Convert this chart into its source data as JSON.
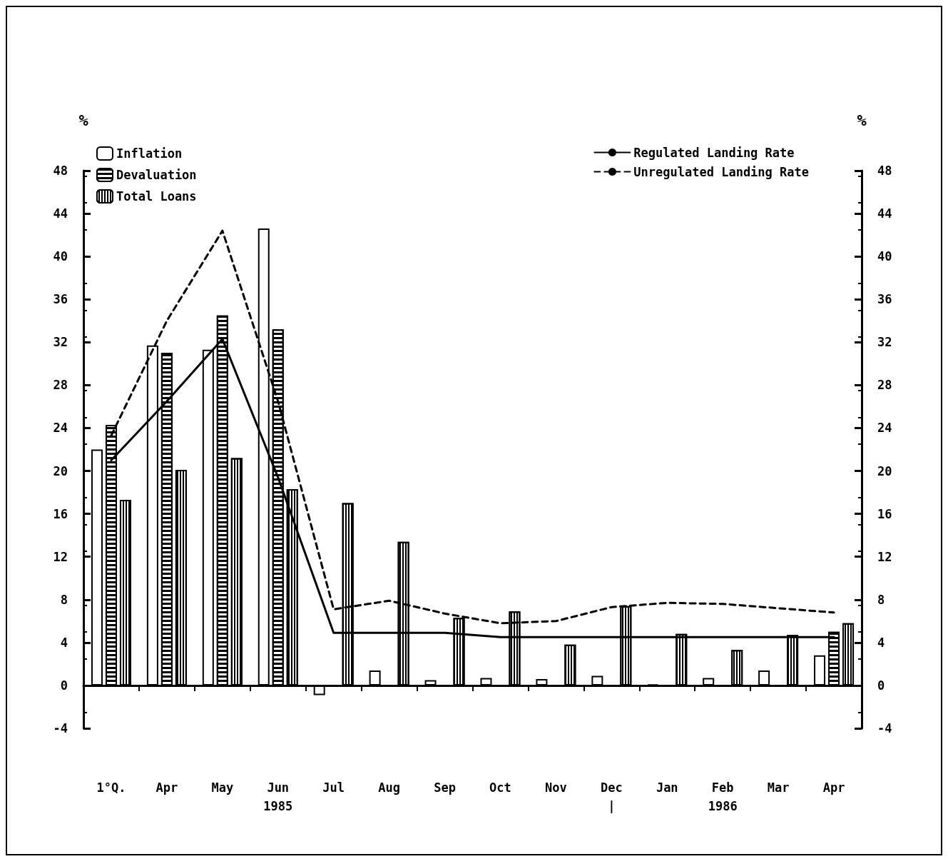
{
  "chart_data": {
    "type": "bar",
    "ylabel": "%",
    "y2label": "%",
    "categories": [
      "1°Q.",
      "Apr",
      "May",
      "Jun\n1985",
      "Jul",
      "Aug",
      "Sep",
      "Oct",
      "Nov",
      "Dec\n|",
      "Jan",
      "Feb\n1986",
      "Mar",
      "Apr"
    ],
    "series": [
      {
        "name": "Inflation",
        "color": "#000000",
        "values": [
          22,
          31.7,
          31.3,
          42.6,
          -0.9,
          1.4,
          0.5,
          0.7,
          0.6,
          0.9,
          0.1,
          0.7,
          1.4,
          2.8
        ]
      },
      {
        "name": "Devaluation",
        "color": "#000000",
        "values": [
          24.3,
          31,
          34.5,
          33.2,
          0,
          0,
          0,
          0,
          0,
          0,
          0,
          0,
          0,
          5
        ]
      },
      {
        "name": "Total Loans",
        "color": "#000000",
        "values": [
          17.3,
          20.1,
          21.2,
          18.3,
          17,
          13.4,
          6.3,
          6.9,
          3.8,
          7.4,
          4.8,
          3.3,
          4.7,
          5.8
        ]
      },
      {
        "name": "Regulated Landing Rate",
        "type": "line",
        "color": "#000000",
        "line_style": "solid",
        "values": [
          21,
          26.5,
          32.3,
          19.4,
          4.9,
          4.9,
          4.9,
          4.5,
          4.5,
          4.5,
          4.5,
          4.5,
          4.5,
          4.5
        ]
      },
      {
        "name": "Unregulated Landing Rate",
        "type": "line",
        "color": "#000000",
        "line_style": "dashed",
        "values": [
          23.3,
          34,
          42.4,
          26.5,
          7.1,
          7.9,
          6.7,
          5.8,
          6,
          7.3,
          7.7,
          7.6,
          7.2,
          6.8
        ]
      }
    ],
    "ylim": [
      -4,
      48
    ],
    "yticks": [
      -4,
      0,
      4,
      8,
      12,
      16,
      20,
      24,
      28,
      32,
      36,
      40,
      44,
      48
    ],
    "y2lim": [
      -4,
      48
    ],
    "y2ticks": [
      -4,
      0,
      4,
      8,
      12,
      16,
      20,
      24,
      28,
      32,
      36,
      40,
      44,
      48
    ],
    "legend": "top",
    "marker": "none"
  }
}
